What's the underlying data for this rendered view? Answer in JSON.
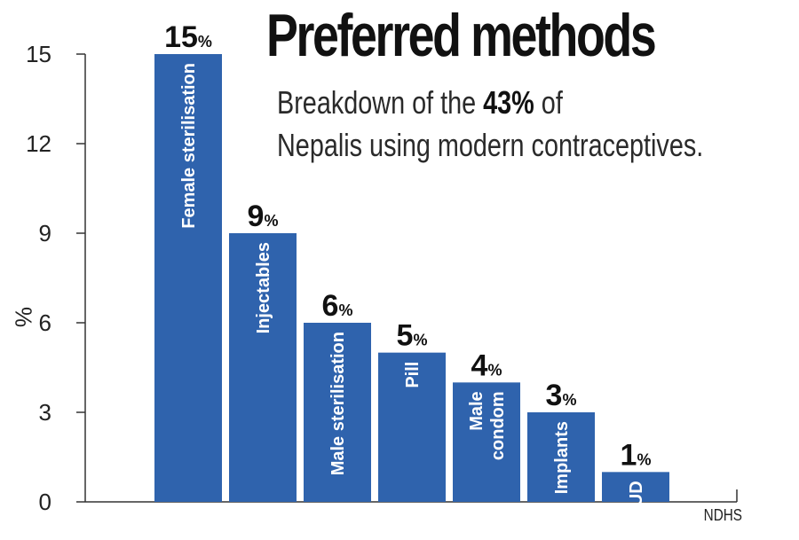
{
  "chart_data": {
    "type": "bar",
    "title": "Preferred methods",
    "subtitle": {
      "line1_before": "Breakdown of the ",
      "line1_bold": "43%",
      "line1_after": " of",
      "line2": "Nepalis using modern contraceptives."
    },
    "ylabel": "%",
    "xlabel": "",
    "ylim": [
      0,
      15
    ],
    "yticks": [
      "0",
      "3",
      "6",
      "9",
      "12",
      "15"
    ],
    "categories": [
      [
        "Female sterilisation"
      ],
      [
        "Injectables"
      ],
      [
        "Male sterilisation"
      ],
      [
        "Pill"
      ],
      [
        "Male",
        "condom"
      ],
      [
        "Implants"
      ],
      [
        "IUD"
      ]
    ],
    "values": [
      15,
      9,
      6,
      5,
      4,
      3,
      1
    ],
    "value_labels": [
      "15",
      "9",
      "6",
      "5",
      "4",
      "3",
      "1"
    ],
    "value_unit": "%",
    "source": "NDHS",
    "grid": false,
    "colors": {
      "bar": "#2f63ad",
      "bar_text": "#ffffff",
      "axis": "#333333",
      "text": "#111111"
    }
  }
}
